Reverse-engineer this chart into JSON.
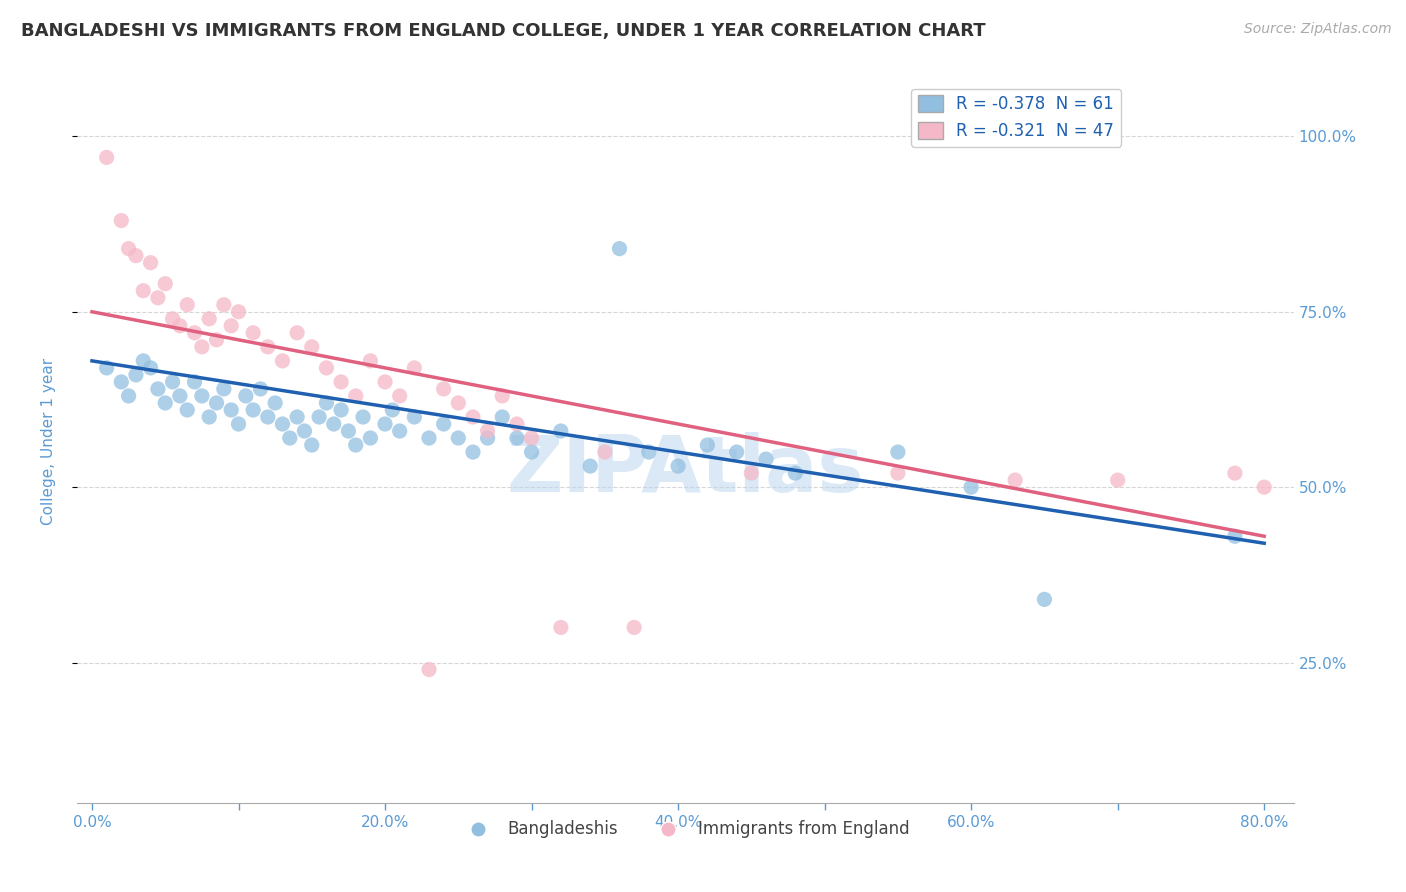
{
  "title": "BANGLADESHI VS IMMIGRANTS FROM ENGLAND COLLEGE, UNDER 1 YEAR CORRELATION CHART",
  "source_text": "Source: ZipAtlas.com",
  "ylabel": "College, Under 1 year",
  "x_tick_labels": [
    "0.0%",
    "",
    "20.0%",
    "",
    "40.0%",
    "",
    "60.0%",
    "",
    "80.0%"
  ],
  "x_tick_values": [
    0.0,
    10.0,
    20.0,
    30.0,
    40.0,
    50.0,
    60.0,
    70.0,
    80.0
  ],
  "y_tick_labels": [
    "25.0%",
    "50.0%",
    "75.0%",
    "100.0%"
  ],
  "y_tick_values": [
    25.0,
    50.0,
    75.0,
    100.0
  ],
  "xlim": [
    -1.0,
    82.0
  ],
  "ylim": [
    5.0,
    108.0
  ],
  "legend_labels": [
    "Bangladeshis",
    "Immigrants from England"
  ],
  "legend_r_blue": "R = -0.378  N = 61",
  "legend_r_pink": "R = -0.321  N = 47",
  "blue_color": "#92bfe0",
  "pink_color": "#f5b8c8",
  "blue_line_color": "#2060b0",
  "pink_line_color": "#e06080",
  "blue_line_x0": 0.0,
  "blue_line_y0": 68.0,
  "blue_line_x1": 80.0,
  "blue_line_y1": 42.0,
  "pink_line_x0": 0.0,
  "pink_line_y0": 75.0,
  "pink_line_x1": 80.0,
  "pink_line_y1": 43.0,
  "blue_scatter": [
    [
      1.0,
      67.0
    ],
    [
      2.0,
      65.0
    ],
    [
      2.5,
      63.0
    ],
    [
      3.0,
      66.0
    ],
    [
      3.5,
      68.0
    ],
    [
      4.0,
      67.0
    ],
    [
      4.5,
      64.0
    ],
    [
      5.0,
      62.0
    ],
    [
      5.5,
      65.0
    ],
    [
      6.0,
      63.0
    ],
    [
      6.5,
      61.0
    ],
    [
      7.0,
      65.0
    ],
    [
      7.5,
      63.0
    ],
    [
      8.0,
      60.0
    ],
    [
      8.5,
      62.0
    ],
    [
      9.0,
      64.0
    ],
    [
      9.5,
      61.0
    ],
    [
      10.0,
      59.0
    ],
    [
      10.5,
      63.0
    ],
    [
      11.0,
      61.0
    ],
    [
      11.5,
      64.0
    ],
    [
      12.0,
      60.0
    ],
    [
      12.5,
      62.0
    ],
    [
      13.0,
      59.0
    ],
    [
      13.5,
      57.0
    ],
    [
      14.0,
      60.0
    ],
    [
      14.5,
      58.0
    ],
    [
      15.0,
      56.0
    ],
    [
      15.5,
      60.0
    ],
    [
      16.0,
      62.0
    ],
    [
      16.5,
      59.0
    ],
    [
      17.0,
      61.0
    ],
    [
      17.5,
      58.0
    ],
    [
      18.0,
      56.0
    ],
    [
      18.5,
      60.0
    ],
    [
      19.0,
      57.0
    ],
    [
      20.0,
      59.0
    ],
    [
      20.5,
      61.0
    ],
    [
      21.0,
      58.0
    ],
    [
      22.0,
      60.0
    ],
    [
      23.0,
      57.0
    ],
    [
      24.0,
      59.0
    ],
    [
      25.0,
      57.0
    ],
    [
      26.0,
      55.0
    ],
    [
      27.0,
      57.0
    ],
    [
      28.0,
      60.0
    ],
    [
      29.0,
      57.0
    ],
    [
      30.0,
      55.0
    ],
    [
      32.0,
      58.0
    ],
    [
      34.0,
      53.0
    ],
    [
      36.0,
      84.0
    ],
    [
      38.0,
      55.0
    ],
    [
      40.0,
      53.0
    ],
    [
      42.0,
      56.0
    ],
    [
      44.0,
      55.0
    ],
    [
      46.0,
      54.0
    ],
    [
      48.0,
      52.0
    ],
    [
      55.0,
      55.0
    ],
    [
      60.0,
      50.0
    ],
    [
      65.0,
      34.0
    ],
    [
      78.0,
      43.0
    ]
  ],
  "pink_scatter": [
    [
      1.0,
      97.0
    ],
    [
      2.0,
      88.0
    ],
    [
      2.5,
      84.0
    ],
    [
      3.0,
      83.0
    ],
    [
      3.5,
      78.0
    ],
    [
      4.0,
      82.0
    ],
    [
      4.5,
      77.0
    ],
    [
      5.0,
      79.0
    ],
    [
      5.5,
      74.0
    ],
    [
      6.0,
      73.0
    ],
    [
      6.5,
      76.0
    ],
    [
      7.0,
      72.0
    ],
    [
      7.5,
      70.0
    ],
    [
      8.0,
      74.0
    ],
    [
      8.5,
      71.0
    ],
    [
      9.0,
      76.0
    ],
    [
      9.5,
      73.0
    ],
    [
      10.0,
      75.0
    ],
    [
      11.0,
      72.0
    ],
    [
      12.0,
      70.0
    ],
    [
      13.0,
      68.0
    ],
    [
      14.0,
      72.0
    ],
    [
      15.0,
      70.0
    ],
    [
      16.0,
      67.0
    ],
    [
      17.0,
      65.0
    ],
    [
      18.0,
      63.0
    ],
    [
      19.0,
      68.0
    ],
    [
      20.0,
      65.0
    ],
    [
      21.0,
      63.0
    ],
    [
      22.0,
      67.0
    ],
    [
      23.0,
      24.0
    ],
    [
      24.0,
      64.0
    ],
    [
      25.0,
      62.0
    ],
    [
      26.0,
      60.0
    ],
    [
      27.0,
      58.0
    ],
    [
      28.0,
      63.0
    ],
    [
      29.0,
      59.0
    ],
    [
      30.0,
      57.0
    ],
    [
      32.0,
      30.0
    ],
    [
      35.0,
      55.0
    ],
    [
      37.0,
      30.0
    ],
    [
      45.0,
      52.0
    ],
    [
      55.0,
      52.0
    ],
    [
      63.0,
      51.0
    ],
    [
      70.0,
      51.0
    ],
    [
      78.0,
      52.0
    ],
    [
      80.0,
      50.0
    ]
  ],
  "background_color": "#ffffff",
  "grid_color": "#cccccc",
  "title_color": "#333333",
  "axis_label_color": "#5b9bd5",
  "tick_color": "#5b9bd5",
  "watermark_text": "ZIPAtlas",
  "watermark_color": "#b8d4f0",
  "watermark_alpha": 0.5
}
